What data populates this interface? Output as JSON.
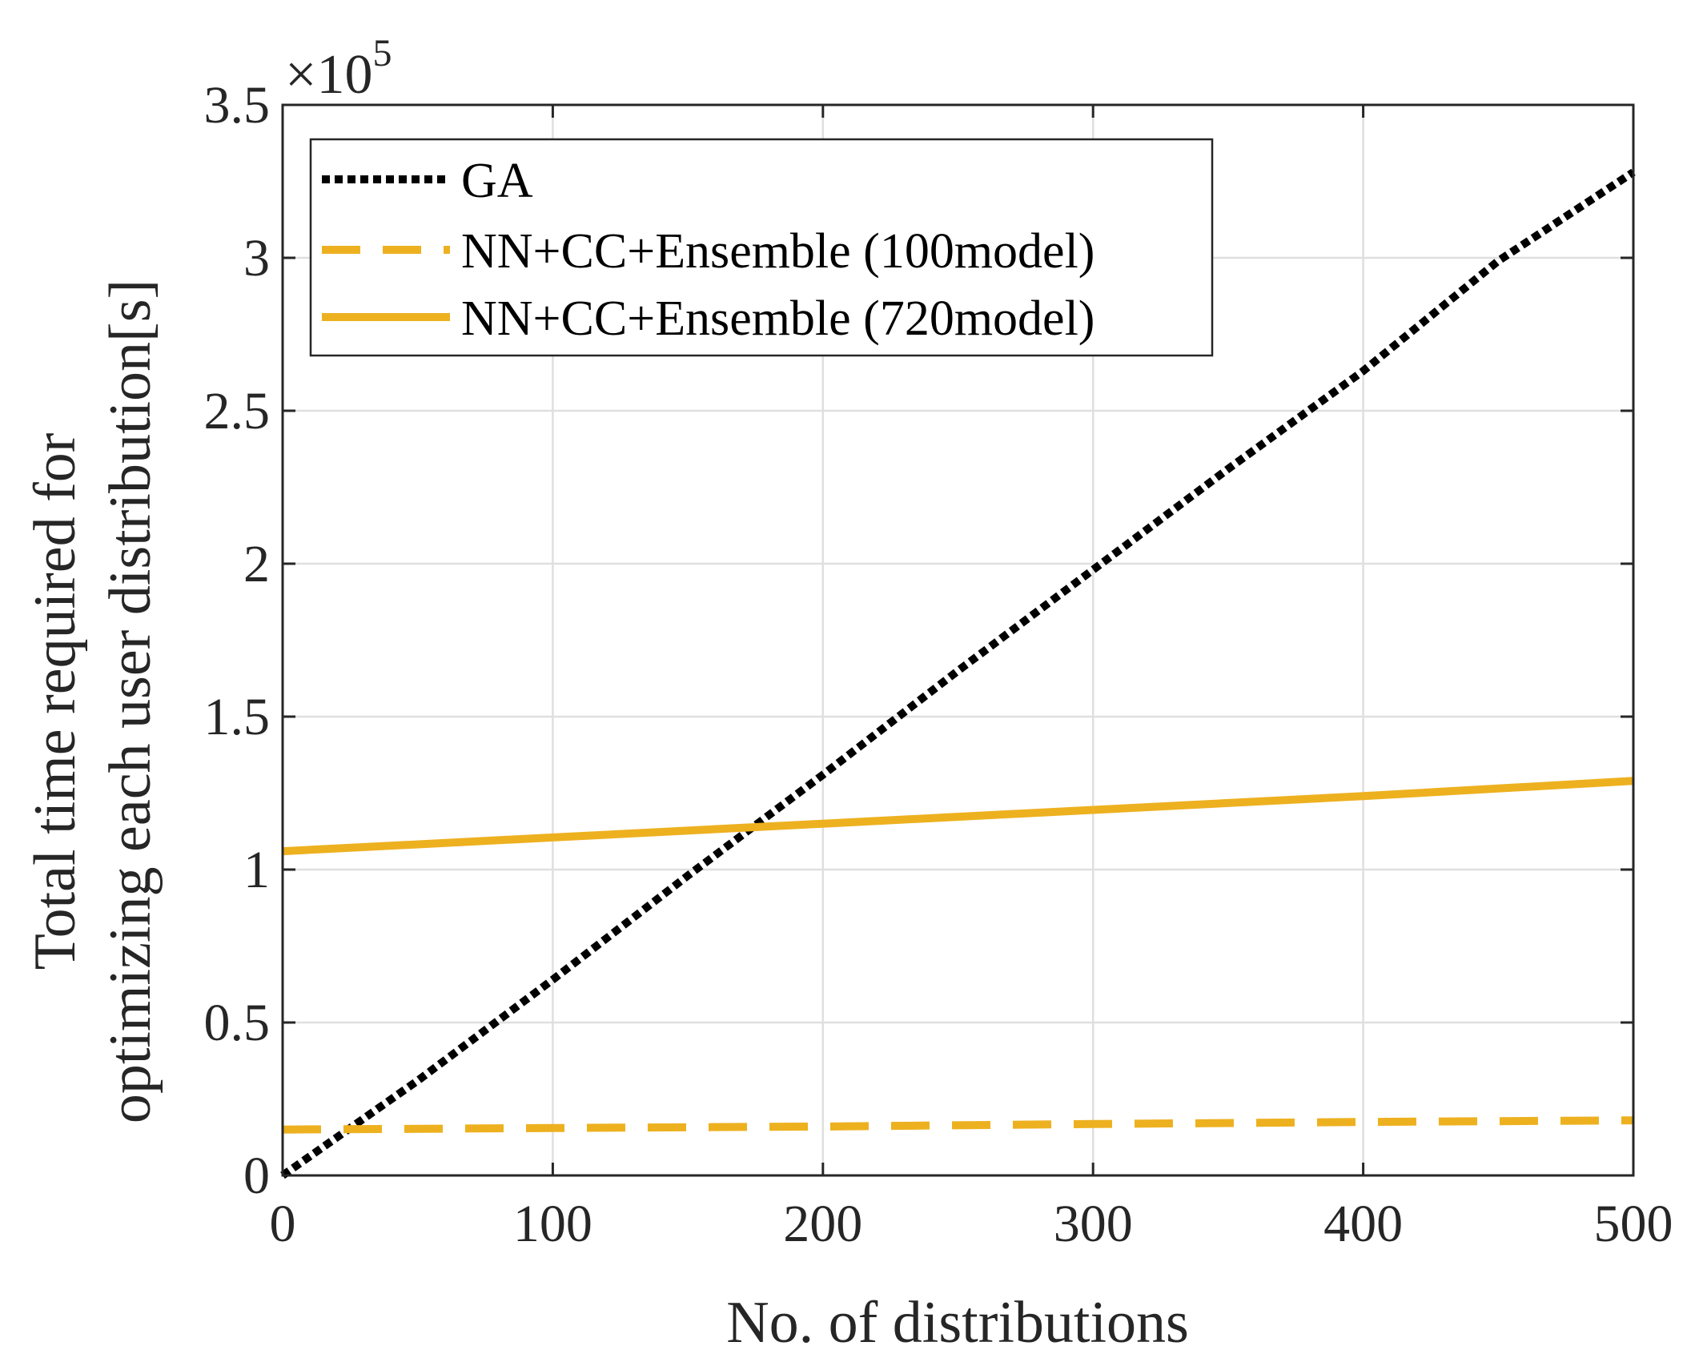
{
  "chart_data": {
    "type": "line",
    "xlabel": "No. of distributions",
    "ylabel": [
      "Total time required for",
      "optimizing each user distribution[s]"
    ],
    "y_exponent_label": {
      "base": "×10",
      "exponent": "5"
    },
    "xlim": [
      0,
      500
    ],
    "ylim": [
      0,
      3.5
    ],
    "y_scale_factor": 100000,
    "x_ticks": [
      0,
      100,
      200,
      300,
      400,
      500
    ],
    "x_tick_labels": [
      "0",
      "100",
      "200",
      "300",
      "400",
      "500"
    ],
    "y_ticks": [
      0,
      0.5,
      1,
      1.5,
      2,
      2.5,
      3,
      3.5
    ],
    "y_tick_labels": [
      "0",
      "0.5",
      "1",
      "1.5",
      "2",
      "2.5",
      "3",
      "3.5"
    ],
    "grid": true,
    "legend_position": "top-left",
    "series": [
      {
        "name": "GA",
        "color": "#000000",
        "style": "dotted",
        "x": [
          0,
          50,
          100,
          150,
          200,
          250,
          300,
          350,
          400,
          450,
          500
        ],
        "y": [
          0,
          0.31,
          0.64,
          0.98,
          1.31,
          1.65,
          1.98,
          2.31,
          2.63,
          2.99,
          3.28
        ]
      },
      {
        "name": "NN+CC+Ensemble (100model)",
        "color": "#EDB120",
        "style": "dashed",
        "x": [
          0,
          100,
          200,
          300,
          400,
          500
        ],
        "y": [
          0.15,
          0.155,
          0.16,
          0.168,
          0.175,
          0.18
        ]
      },
      {
        "name": "NN+CC+Ensemble (720model)",
        "color": "#EDB120",
        "style": "solid",
        "x": [
          0,
          100,
          200,
          300,
          400,
          500
        ],
        "y": [
          1.06,
          1.105,
          1.15,
          1.195,
          1.24,
          1.29
        ]
      }
    ]
  }
}
